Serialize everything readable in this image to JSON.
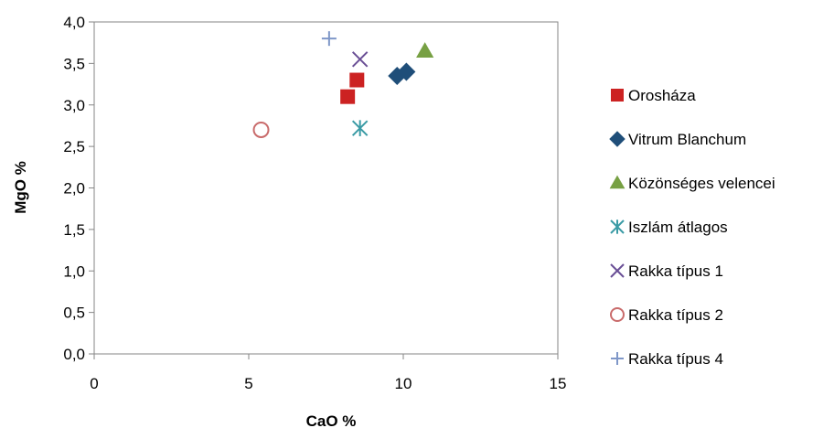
{
  "chart_data": {
    "type": "scatter",
    "xlabel": "CaO %",
    "ylabel": "MgO %",
    "xlim": [
      0,
      15
    ],
    "ylim": [
      0,
      4
    ],
    "x_ticks": [
      "0",
      "5",
      "10",
      "15"
    ],
    "y_ticks": [
      "0,0",
      "0,5",
      "1,0",
      "1,5",
      "2,0",
      "2,5",
      "3,0",
      "3,5",
      "4,0"
    ],
    "grid": false,
    "legend_position": "right",
    "series": [
      {
        "name": "Orosháza",
        "marker": "square",
        "color": "#cc2222",
        "points": [
          [
            8.2,
            3.1
          ],
          [
            8.5,
            3.3
          ]
        ]
      },
      {
        "name": "Vitrum Blanchum",
        "marker": "diamond",
        "color": "#1f4e79",
        "points": [
          [
            9.8,
            3.35
          ],
          [
            10.1,
            3.4
          ]
        ]
      },
      {
        "name": "Közönséges velencei",
        "marker": "triangle",
        "color": "#77a043",
        "points": [
          [
            10.7,
            3.65
          ]
        ]
      },
      {
        "name": "Iszlám átlagos",
        "marker": "asterisk",
        "color": "#3a9ba5",
        "points": [
          [
            8.6,
            2.72
          ]
        ]
      },
      {
        "name": "Rakka típus 1",
        "marker": "x",
        "color": "#6a4f96",
        "points": [
          [
            8.6,
            3.55
          ]
        ]
      },
      {
        "name": "Rakka típus 2",
        "marker": "circle",
        "color": "#c96b6b",
        "points": [
          [
            5.4,
            2.7
          ]
        ]
      },
      {
        "name": "Rakka típus 4",
        "marker": "plus",
        "color": "#7f97c8",
        "points": [
          [
            7.6,
            3.8
          ]
        ]
      }
    ]
  }
}
